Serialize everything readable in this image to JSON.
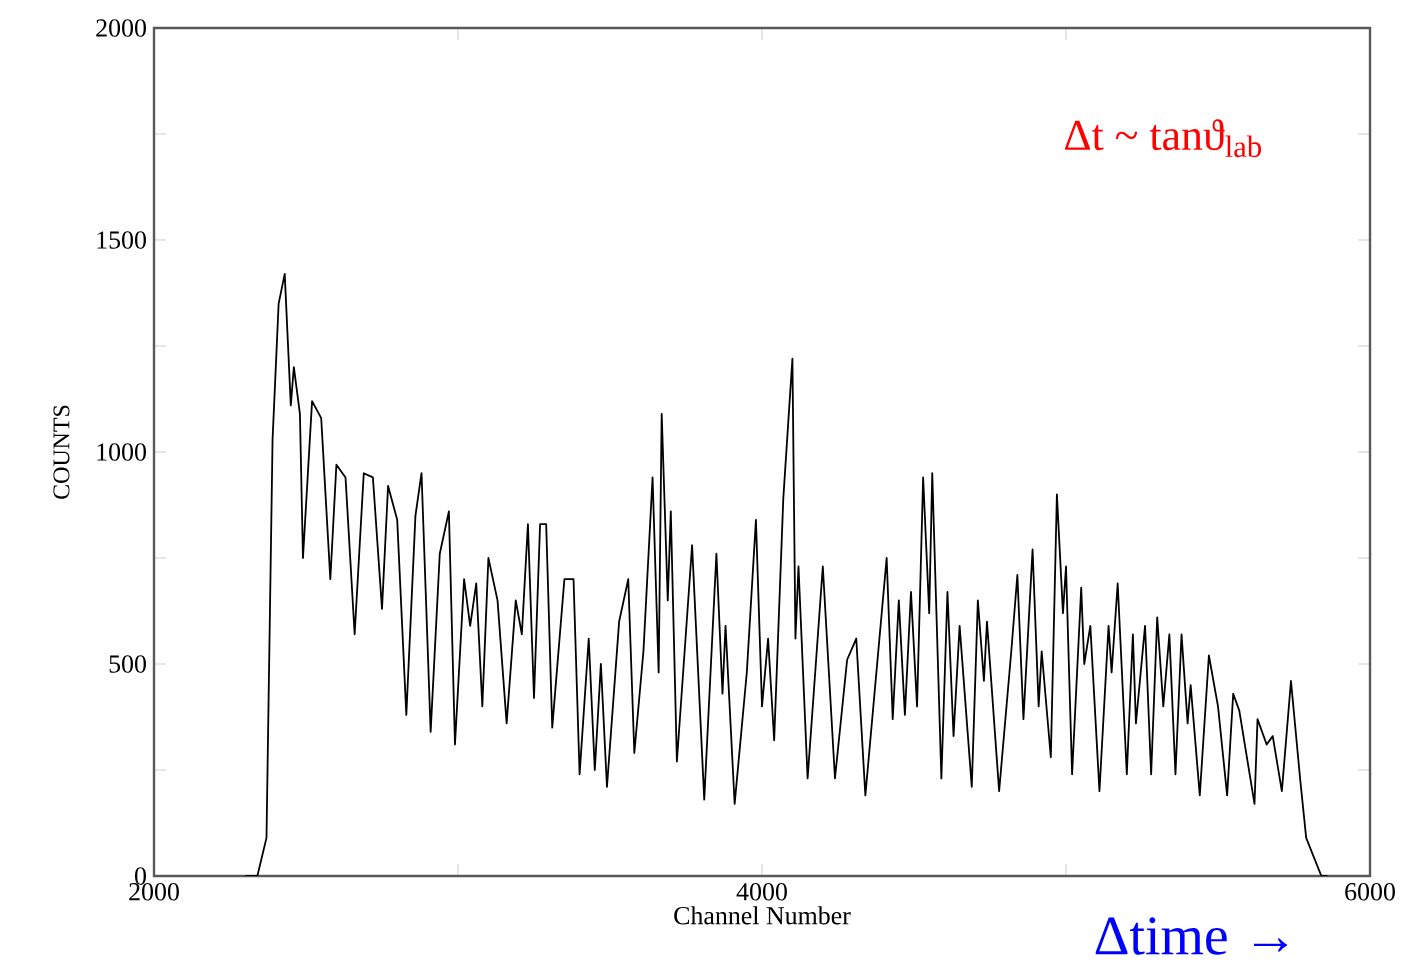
{
  "chart_data": {
    "type": "line",
    "xlabel": "Channel Number",
    "ylabel": "COUNTS",
    "annotations": [
      "Δt ~ tanϑ$_{lab}$",
      "Δtime →"
    ],
    "xlim": [
      2000,
      6000
    ],
    "ylim": [
      0,
      2000
    ],
    "xticks": [
      2000,
      {
        "value": 3000,
        "label": null
      },
      4000,
      {
        "value": 5000,
        "label": null
      },
      6000
    ],
    "yticks": [
      0,
      {
        "value": 250,
        "label": null
      },
      500,
      {
        "value": 750,
        "label": null
      },
      1000,
      {
        "value": 1250,
        "label": null
      },
      1500,
      {
        "value": 1750,
        "label": null
      },
      2000
    ],
    "grid": false,
    "marker": "none",
    "line_style": "solid",
    "series": [
      {
        "color": "#000000",
        "x": [
          2300,
          2340,
          2370,
          2390,
          2410,
          2430,
          2450,
          2460,
          2480,
          2490,
          2520,
          2550,
          2580,
          2600,
          2630,
          2660,
          2690,
          2720,
          2750,
          2770,
          2800,
          2830,
          2860,
          2880,
          2910,
          2940,
          2970,
          2990,
          3020,
          3040,
          3060,
          3080,
          3100,
          3130,
          3160,
          3190,
          3210,
          3230,
          3250,
          3270,
          3290,
          3310,
          3350,
          3380,
          3400,
          3430,
          3450,
          3470,
          3490,
          3530,
          3560,
          3580,
          3610,
          3640,
          3660,
          3670,
          3690,
          3700,
          3720,
          3770,
          3810,
          3850,
          3870,
          3880,
          3910,
          3950,
          3980,
          4000,
          4020,
          4040,
          4070,
          4100,
          4110,
          4120,
          4150,
          4200,
          4240,
          4280,
          4310,
          4340,
          4410,
          4430,
          4450,
          4470,
          4490,
          4510,
          4530,
          4550,
          4560,
          4590,
          4610,
          4630,
          4650,
          4690,
          4710,
          4730,
          4740,
          4780,
          4820,
          4840,
          4860,
          4890,
          4910,
          4920,
          4950,
          4970,
          4990,
          5000,
          5020,
          5050,
          5060,
          5080,
          5110,
          5140,
          5150,
          5170,
          5200,
          5220,
          5230,
          5260,
          5280,
          5300,
          5320,
          5340,
          5360,
          5380,
          5400,
          5410,
          5440,
          5470,
          5500,
          5530,
          5550,
          5570,
          5620,
          5630,
          5660,
          5680,
          5710,
          5740,
          5770,
          5790,
          5840,
          5860
        ],
        "values": [
          0,
          0,
          90,
          1030,
          1350,
          1420,
          1110,
          1200,
          1090,
          750,
          1120,
          1080,
          700,
          970,
          940,
          570,
          950,
          940,
          630,
          920,
          840,
          380,
          850,
          950,
          340,
          760,
          860,
          310,
          700,
          590,
          690,
          400,
          750,
          650,
          360,
          650,
          570,
          830,
          420,
          830,
          830,
          350,
          700,
          700,
          240,
          560,
          250,
          500,
          210,
          600,
          700,
          290,
          530,
          940,
          480,
          1090,
          650,
          860,
          270,
          780,
          180,
          760,
          430,
          590,
          170,
          480,
          840,
          400,
          560,
          320,
          890,
          1220,
          560,
          730,
          230,
          730,
          230,
          510,
          560,
          190,
          750,
          370,
          650,
          380,
          670,
          400,
          940,
          620,
          950,
          230,
          670,
          330,
          590,
          210,
          650,
          460,
          600,
          200,
          530,
          710,
          370,
          770,
          400,
          530,
          280,
          900,
          620,
          730,
          240,
          680,
          500,
          590,
          200,
          590,
          480,
          690,
          240,
          570,
          360,
          590,
          240,
          610,
          400,
          570,
          240,
          570,
          360,
          450,
          190,
          520,
          400,
          190,
          430,
          390,
          170,
          370,
          310,
          330,
          200,
          460,
          230,
          90,
          0,
          0
        ]
      }
    ]
  }
}
